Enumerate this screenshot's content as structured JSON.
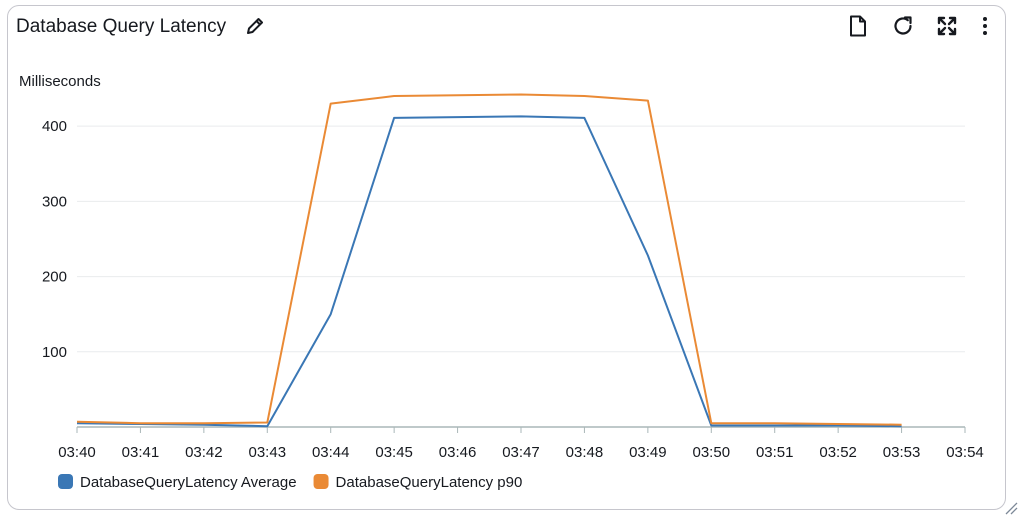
{
  "widget": {
    "title": "Database Query Latency",
    "icons": [
      "edit-icon",
      "file-icon",
      "refresh-icon",
      "expand-icon",
      "more-vertical-icon",
      "resize-grip-icon"
    ]
  },
  "chart_data": {
    "type": "line",
    "ylabel": "Milliseconds",
    "x": [
      "03:40",
      "03:41",
      "03:42",
      "03:43",
      "03:44",
      "03:45",
      "03:46",
      "03:47",
      "03:48",
      "03:49",
      "03:50",
      "03:51",
      "03:52",
      "03:53",
      "03:54"
    ],
    "yticks": [
      100,
      200,
      300,
      400
    ],
    "ylim": [
      0,
      460
    ],
    "grid": true,
    "legend": "bottom-left",
    "series": [
      {
        "name": "DatabaseQueryLatency Average",
        "color": "#3a77b5",
        "values": [
          5,
          4,
          3,
          1,
          150,
          411,
          412,
          413,
          411,
          228,
          2,
          2,
          2,
          1,
          null
        ]
      },
      {
        "name": "DatabaseQueryLatency p90",
        "color": "#ea8a35",
        "values": [
          7,
          5,
          5,
          6,
          430,
          440,
          441,
          442,
          440,
          434,
          5,
          5,
          4,
          3,
          null
        ]
      }
    ]
  }
}
